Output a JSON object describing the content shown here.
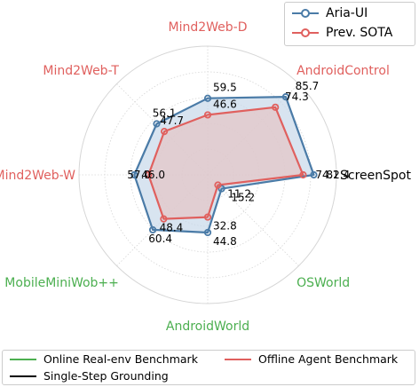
{
  "chart_data": {
    "type": "radar",
    "axes": [
      "Mind2Web-D",
      "AndroidControl",
      "ScreenSpot",
      "OSWorld",
      "AndroidWorld",
      "MobileMiniWob++",
      "Mind2Web-W",
      "Mind2Web-T"
    ],
    "axis_groups": [
      "offline",
      "offline",
      "single",
      "online",
      "online",
      "online",
      "offline",
      "offline"
    ],
    "range": [
      0,
      100
    ],
    "grid": true,
    "series": [
      {
        "name": "Aria-UI",
        "color": "#4a7ba7",
        "fill": "#c8d9ea",
        "values": [
          59.5,
          85.7,
          82.4,
          15.2,
          44.8,
          60.4,
          57.0,
          56.1
        ],
        "labels": [
          "59.5",
          "85.7",
          "82.4",
          "15.2",
          "44.8",
          "60.4",
          "57.0",
          "56.1"
        ]
      },
      {
        "name": "Prev. SOTA",
        "color": "#e0605e",
        "fill": "#e6c5c5",
        "values": [
          46.6,
          74.3,
          74.1,
          11.2,
          32.8,
          48.4,
          46.0,
          47.7
        ],
        "labels": [
          "46.6",
          "74.3",
          "74.1",
          "11.2",
          "32.8",
          "48.4",
          "46.0",
          "47.7"
        ]
      }
    ],
    "legend": {
      "placement": "top-right"
    }
  },
  "group_legend": [
    {
      "name": "Online Real-env Benchmark",
      "color": "#4caf50"
    },
    {
      "name": "Offline Agent Benchmark",
      "color": "#e0605e"
    },
    {
      "name": "Single-Step Grounding",
      "color": "#000000"
    }
  ],
  "colors": {
    "online": "#4caf50",
    "offline": "#e0605e",
    "single": "#000000",
    "grid": "#d6d6d6"
  }
}
